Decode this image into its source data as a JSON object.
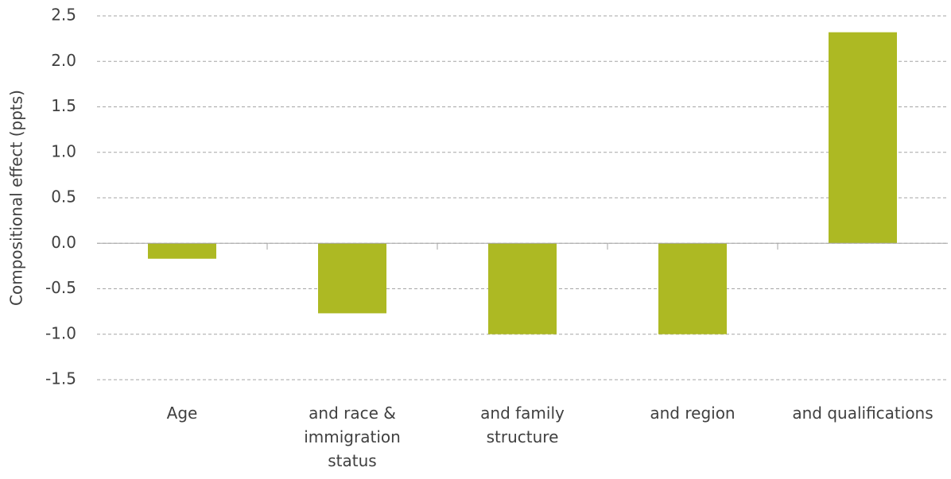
{
  "chart_data": {
    "type": "bar",
    "y_label": "Compositional effect (ppts)",
    "categories": [
      "Age",
      "and race & immigration status",
      "and family structure",
      "and region",
      "and qualifications"
    ],
    "values": [
      -0.17,
      -0.77,
      -1.0,
      -1.0,
      2.32
    ],
    "color": "#adb923",
    "ylim": [
      -1.5,
      2.5
    ],
    "yticks": [
      -1.5,
      {
        "value": -1,
        "label": "-1.0"
      },
      -0.5,
      {
        "value": 0,
        "label": "0.0"
      },
      0.5,
      {
        "value": 1,
        "label": "1.0"
      },
      1.5,
      {
        "value": 2,
        "label": "2.0"
      },
      2.5
    ],
    "grid": true
  }
}
